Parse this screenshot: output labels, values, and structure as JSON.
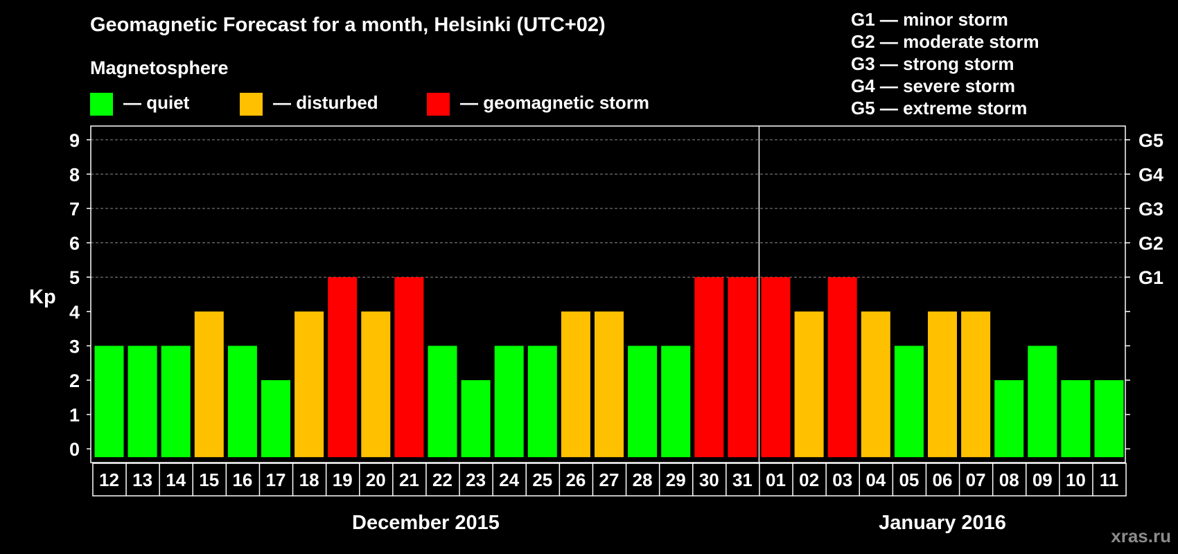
{
  "title": "Geomagnetic Forecast for a month, Helsinki (UTC+02)",
  "legend": {
    "heading": "Magnetosphere",
    "items": [
      {
        "label": "— quiet",
        "color": "#00ff00"
      },
      {
        "label": "— disturbed",
        "color": "#ffc000"
      },
      {
        "label": "— geomagnetic storm",
        "color": "#ff0000"
      }
    ]
  },
  "g_scale": [
    "G1 — minor storm",
    "G2 — moderate storm",
    "G3 — strong storm",
    "G4 — severe storm",
    "G5 — extreme storm"
  ],
  "watermark": "xras.ru",
  "colors": {
    "quiet": "#00ff00",
    "disturbed": "#ffc000",
    "storm": "#ff0000",
    "background": "#000000",
    "axis": "#ffffff"
  },
  "chart_data": {
    "type": "bar",
    "title": "Geomagnetic Forecast for a month, Helsinki (UTC+02)",
    "ylabel": "Kp",
    "ylim": [
      0,
      9
    ],
    "yticks": [
      0,
      1,
      2,
      3,
      4,
      5,
      6,
      7,
      8,
      9
    ],
    "right_axis_labels": [
      {
        "kp": 5,
        "label": "G1"
      },
      {
        "kp": 6,
        "label": "G2"
      },
      {
        "kp": 7,
        "label": "G3"
      },
      {
        "kp": 8,
        "label": "G4"
      },
      {
        "kp": 9,
        "label": "G5"
      }
    ],
    "categories": [
      "12",
      "13",
      "14",
      "15",
      "16",
      "17",
      "18",
      "19",
      "20",
      "21",
      "22",
      "23",
      "24",
      "25",
      "26",
      "27",
      "28",
      "29",
      "30",
      "31",
      "01",
      "02",
      "03",
      "04",
      "05",
      "06",
      "07",
      "08",
      "09",
      "10",
      "11"
    ],
    "values": [
      3,
      3,
      3,
      4,
      3,
      2,
      4,
      5,
      4,
      5,
      3,
      2,
      3,
      3,
      4,
      4,
      3,
      3,
      5,
      5,
      5,
      4,
      5,
      4,
      3,
      4,
      4,
      2,
      3,
      2,
      2
    ],
    "month_groups": [
      {
        "label": "December 2015",
        "first_index": 0,
        "last_index": 19
      },
      {
        "label": "January 2016",
        "first_index": 20,
        "last_index": 30
      }
    ],
    "month_separator_after_index": 19,
    "grid": "dashed horizontal at 5–9"
  }
}
